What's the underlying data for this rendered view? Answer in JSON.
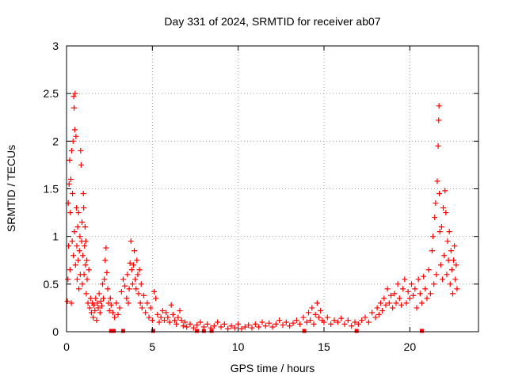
{
  "chart_data": {
    "type": "scatter",
    "title": "Day 331 of 2024, SRMTID for receiver ab07",
    "xlabel": "GPS time / hours",
    "ylabel": "SRMTID / TECUs",
    "xlim": [
      0,
      24
    ],
    "ylim": [
      0,
      3
    ],
    "xticks": [
      0,
      5,
      10,
      15,
      20
    ],
    "yticks": [
      0,
      0.5,
      1,
      1.5,
      2,
      2.5,
      3
    ],
    "xtick_labels": [
      "0",
      "5",
      "10",
      "15",
      "20"
    ],
    "ytick_labels": [
      "0",
      "0.5",
      "1",
      "1.5",
      "2",
      "2.5",
      "3"
    ],
    "grid": true,
    "marker": "plus",
    "color": "#ff0000",
    "series": [
      {
        "name": "SRMTID",
        "points": [
          [
            0.05,
            0.32
          ],
          [
            0.08,
            0.55
          ],
          [
            0.1,
            1.35
          ],
          [
            0.12,
            0.9
          ],
          [
            0.15,
            1.55
          ],
          [
            0.18,
            1.8
          ],
          [
            0.2,
            0.65
          ],
          [
            0.22,
            1.25
          ],
          [
            0.25,
            1.6
          ],
          [
            0.28,
            0.3
          ],
          [
            0.3,
            1.9
          ],
          [
            0.33,
            0.95
          ],
          [
            0.35,
            1.45
          ],
          [
            0.38,
            2.0
          ],
          [
            0.4,
            0.8
          ],
          [
            0.42,
            2.47
          ],
          [
            0.44,
            2.35
          ],
          [
            0.46,
            1.05
          ],
          [
            0.48,
            2.12
          ],
          [
            0.5,
            2.5
          ],
          [
            0.52,
            0.7
          ],
          [
            0.55,
            2.05
          ],
          [
            0.58,
            1.3
          ],
          [
            0.6,
            0.9
          ],
          [
            0.62,
            0.55
          ],
          [
            0.65,
            1.1
          ],
          [
            0.68,
            0.75
          ],
          [
            0.7,
            1.25
          ],
          [
            0.72,
            0.45
          ],
          [
            0.75,
            0.85
          ],
          [
            0.78,
            1.0
          ],
          [
            0.8,
            0.6
          ],
          [
            0.82,
            1.9
          ],
          [
            0.85,
            1.75
          ],
          [
            0.88,
            0.95
          ],
          [
            0.9,
            1.15
          ],
          [
            0.92,
            0.5
          ],
          [
            0.95,
            0.8
          ],
          [
            0.98,
            1.45
          ],
          [
            1.0,
            1.3
          ],
          [
            1.02,
            0.6
          ],
          [
            1.05,
            0.9
          ],
          [
            1.08,
            1.1
          ],
          [
            1.1,
            0.7
          ],
          [
            1.12,
            0.95
          ],
          [
            1.15,
            0.4
          ],
          [
            1.18,
            0.75
          ],
          [
            1.2,
            0.55
          ],
          [
            1.25,
            0.3
          ],
          [
            1.3,
            0.65
          ],
          [
            1.35,
            0.25
          ],
          [
            1.4,
            0.35
          ],
          [
            1.45,
            0.2
          ],
          [
            1.5,
            0.3
          ],
          [
            1.55,
            0.15
          ],
          [
            1.6,
            0.28
          ],
          [
            1.65,
            0.22
          ],
          [
            1.7,
            0.35
          ],
          [
            1.75,
            0.12
          ],
          [
            1.8,
            0.3
          ],
          [
            1.85,
            0.25
          ],
          [
            1.9,
            0.4
          ],
          [
            1.95,
            0.2
          ],
          [
            2.0,
            0.32
          ],
          [
            2.05,
            0.27
          ],
          [
            2.1,
            0.5
          ],
          [
            2.15,
            0.35
          ],
          [
            2.2,
            0.55
          ],
          [
            2.25,
            0.75
          ],
          [
            2.3,
            0.88
          ],
          [
            2.35,
            0.62
          ],
          [
            2.4,
            0.45
          ],
          [
            2.45,
            0.3
          ],
          [
            2.5,
            0.22
          ],
          [
            2.55,
            0.35
          ],
          [
            2.6,
            0.28
          ],
          [
            2.7,
            0.2
          ],
          [
            2.8,
            0.15
          ],
          [
            2.9,
            0.3
          ],
          [
            3.0,
            0.18
          ],
          [
            3.1,
            0.25
          ],
          [
            3.2,
            0.42
          ],
          [
            3.3,
            0.55
          ],
          [
            3.4,
            0.48
          ],
          [
            3.5,
            0.35
          ],
          [
            3.55,
            0.6
          ],
          [
            3.6,
            0.3
          ],
          [
            3.65,
            0.45
          ],
          [
            3.7,
            0.72
          ],
          [
            3.75,
            0.95
          ],
          [
            3.8,
            0.65
          ],
          [
            3.85,
            0.5
          ],
          [
            3.9,
            0.7
          ],
          [
            3.95,
            0.85
          ],
          [
            4.0,
            0.55
          ],
          [
            4.05,
            0.45
          ],
          [
            4.1,
            0.75
          ],
          [
            4.15,
            0.6
          ],
          [
            4.2,
            0.4
          ],
          [
            4.25,
            0.65
          ],
          [
            4.3,
            0.3
          ],
          [
            4.35,
            0.5
          ],
          [
            4.4,
            0.25
          ],
          [
            4.5,
            0.38
          ],
          [
            4.6,
            0.2
          ],
          [
            4.7,
            0.3
          ],
          [
            4.8,
            0.15
          ],
          [
            4.9,
            0.25
          ],
          [
            5.0,
            0.12
          ],
          [
            5.1,
            0.42
          ],
          [
            5.2,
            0.35
          ],
          [
            5.3,
            0.18
          ],
          [
            5.4,
            0.1
          ],
          [
            5.5,
            0.15
          ],
          [
            5.6,
            0.22
          ],
          [
            5.7,
            0.12
          ],
          [
            5.8,
            0.2
          ],
          [
            5.9,
            0.15
          ],
          [
            6.0,
            0.1
          ],
          [
            6.1,
            0.28
          ],
          [
            6.2,
            0.18
          ],
          [
            6.3,
            0.12
          ],
          [
            6.4,
            0.08
          ],
          [
            6.5,
            0.15
          ],
          [
            6.6,
            0.22
          ],
          [
            6.7,
            0.12
          ],
          [
            6.8,
            0.06
          ],
          [
            6.9,
            0.1
          ],
          [
            7.0,
            0.05
          ],
          [
            7.2,
            0.08
          ],
          [
            7.4,
            0.04
          ],
          [
            7.6,
            0.07
          ],
          [
            7.8,
            0.1
          ],
          [
            8.0,
            0.05
          ],
          [
            8.2,
            0.08
          ],
          [
            8.4,
            0.04
          ],
          [
            8.6,
            0.06
          ],
          [
            8.8,
            0.1
          ],
          [
            9.0,
            0.05
          ],
          [
            9.2,
            0.08
          ],
          [
            9.4,
            0.03
          ],
          [
            9.6,
            0.06
          ],
          [
            9.8,
            0.04
          ],
          [
            10.0,
            0.08
          ],
          [
            10.2,
            0.03
          ],
          [
            10.4,
            0.05
          ],
          [
            10.6,
            0.07
          ],
          [
            10.8,
            0.04
          ],
          [
            11.0,
            0.08
          ],
          [
            11.2,
            0.05
          ],
          [
            11.4,
            0.1
          ],
          [
            11.6,
            0.06
          ],
          [
            11.8,
            0.09
          ],
          [
            12.0,
            0.05
          ],
          [
            12.2,
            0.08
          ],
          [
            12.4,
            0.12
          ],
          [
            12.6,
            0.07
          ],
          [
            12.8,
            0.1
          ],
          [
            13.0,
            0.06
          ],
          [
            13.2,
            0.09
          ],
          [
            13.4,
            0.12
          ],
          [
            13.6,
            0.08
          ],
          [
            13.8,
            0.15
          ],
          [
            14.0,
            0.1
          ],
          [
            14.1,
            0.2
          ],
          [
            14.2,
            0.12
          ],
          [
            14.3,
            0.25
          ],
          [
            14.4,
            0.08
          ],
          [
            14.5,
            0.18
          ],
          [
            14.6,
            0.3
          ],
          [
            14.7,
            0.15
          ],
          [
            14.8,
            0.22
          ],
          [
            14.9,
            0.12
          ],
          [
            15.0,
            0.1
          ],
          [
            15.2,
            0.15
          ],
          [
            15.4,
            0.08
          ],
          [
            15.6,
            0.12
          ],
          [
            15.8,
            0.1
          ],
          [
            16.0,
            0.14
          ],
          [
            16.2,
            0.08
          ],
          [
            16.4,
            0.12
          ],
          [
            16.6,
            0.06
          ],
          [
            16.8,
            0.1
          ],
          [
            17.0,
            0.08
          ],
          [
            17.2,
            0.12
          ],
          [
            17.4,
            0.15
          ],
          [
            17.6,
            0.1
          ],
          [
            17.8,
            0.2
          ],
          [
            18.0,
            0.15
          ],
          [
            18.1,
            0.25
          ],
          [
            18.2,
            0.18
          ],
          [
            18.3,
            0.3
          ],
          [
            18.4,
            0.22
          ],
          [
            18.5,
            0.35
          ],
          [
            18.6,
            0.28
          ],
          [
            18.7,
            0.45
          ],
          [
            18.8,
            0.3
          ],
          [
            18.9,
            0.38
          ],
          [
            19.0,
            0.25
          ],
          [
            19.1,
            0.4
          ],
          [
            19.2,
            0.3
          ],
          [
            19.3,
            0.5
          ],
          [
            19.4,
            0.35
          ],
          [
            19.5,
            0.28
          ],
          [
            19.6,
            0.45
          ],
          [
            19.7,
            0.55
          ],
          [
            19.8,
            0.3
          ],
          [
            19.9,
            0.42
          ],
          [
            20.0,
            0.35
          ],
          [
            20.1,
            0.5
          ],
          [
            20.2,
            0.38
          ],
          [
            20.3,
            0.45
          ],
          [
            20.4,
            0.25
          ],
          [
            20.5,
            0.55
          ],
          [
            20.6,
            0.4
          ],
          [
            20.7,
            0.3
          ],
          [
            20.8,
            0.58
          ],
          [
            20.9,
            0.45
          ],
          [
            21.0,
            0.35
          ],
          [
            21.1,
            0.65
          ],
          [
            21.2,
            0.4
          ],
          [
            21.3,
            0.85
          ],
          [
            21.35,
            1.0
          ],
          [
            21.4,
            0.5
          ],
          [
            21.45,
            1.2
          ],
          [
            21.5,
            1.35
          ],
          [
            21.55,
            0.6
          ],
          [
            21.6,
            1.58
          ],
          [
            21.65,
            1.95
          ],
          [
            21.68,
            2.22
          ],
          [
            21.7,
            2.37
          ],
          [
            21.72,
            1.45
          ],
          [
            21.75,
            1.05
          ],
          [
            21.8,
            0.7
          ],
          [
            21.85,
            1.1
          ],
          [
            21.9,
            0.55
          ],
          [
            21.95,
            1.3
          ],
          [
            22.0,
            0.8
          ],
          [
            22.05,
            1.48
          ],
          [
            22.1,
            1.25
          ],
          [
            22.15,
            0.6
          ],
          [
            22.2,
            0.95
          ],
          [
            22.25,
            0.75
          ],
          [
            22.3,
            1.05
          ],
          [
            22.35,
            0.5
          ],
          [
            22.4,
            0.85
          ],
          [
            22.45,
            0.65
          ],
          [
            22.5,
            0.4
          ],
          [
            22.55,
            0.75
          ],
          [
            22.6,
            0.9
          ],
          [
            22.65,
            0.55
          ],
          [
            22.7,
            0.7
          ],
          [
            22.75,
            0.45
          ]
        ]
      }
    ]
  }
}
